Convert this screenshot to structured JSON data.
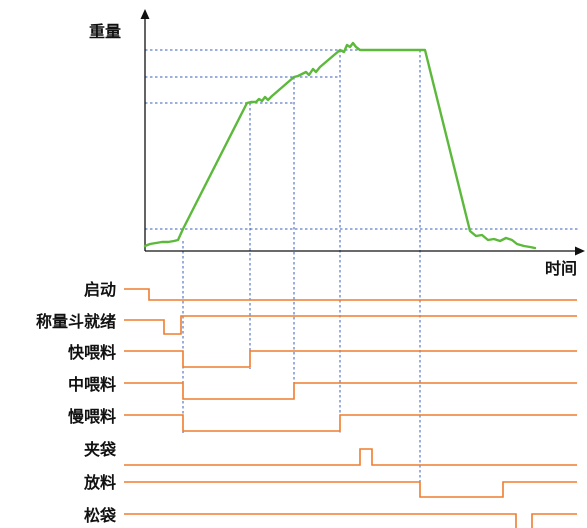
{
  "axes": {
    "y_label": "重量",
    "x_label": "时间"
  },
  "signals": [
    {
      "name": "启动"
    },
    {
      "name": "称量斗就绪"
    },
    {
      "name": "快喂料"
    },
    {
      "name": "中喂料"
    },
    {
      "name": "慢喂料"
    },
    {
      "name": "夹袋"
    },
    {
      "name": "放料"
    },
    {
      "name": "松袋"
    }
  ],
  "colors": {
    "weight_curve": "#5cb93b",
    "signal_lines": "#ee7d2f",
    "guide_lines": "#3a5fb8",
    "axis": "#111111",
    "text": "#111111"
  }
}
